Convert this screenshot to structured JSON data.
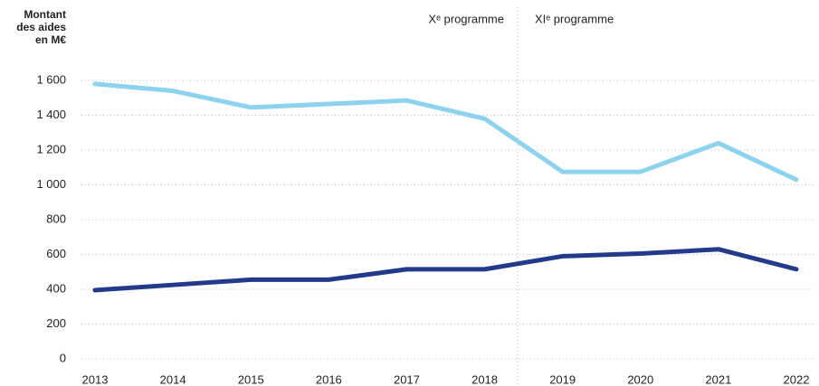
{
  "chart_data": {
    "type": "line",
    "ylabel": [
      "Montant",
      "des aides",
      "en M€"
    ],
    "annotations": [
      "Xᵉ programme",
      "XIᵉ programme"
    ],
    "categories": [
      "2013",
      "2014",
      "2015",
      "2016",
      "2017",
      "2018",
      "2019",
      "2020",
      "2021",
      "2022"
    ],
    "series": [
      {
        "color": "#8dd3f0",
        "values": [
          1580,
          1540,
          1445,
          1465,
          1485,
          1380,
          1075,
          1075,
          1240,
          1030
        ]
      },
      {
        "color": "#233a8c",
        "values": [
          395,
          425,
          455,
          455,
          515,
          515,
          590,
          605,
          630,
          515
        ]
      }
    ],
    "ylim": [
      0,
      1600
    ],
    "yticks": [
      0,
      200,
      400,
      600,
      800,
      {
        "value": 1000,
        "label": "1 000"
      },
      {
        "value": 1200,
        "label": "1 200"
      },
      {
        "value": 1400,
        "label": "1 400"
      },
      {
        "value": 1600,
        "label": "1 600"
      }
    ],
    "grid": true
  }
}
